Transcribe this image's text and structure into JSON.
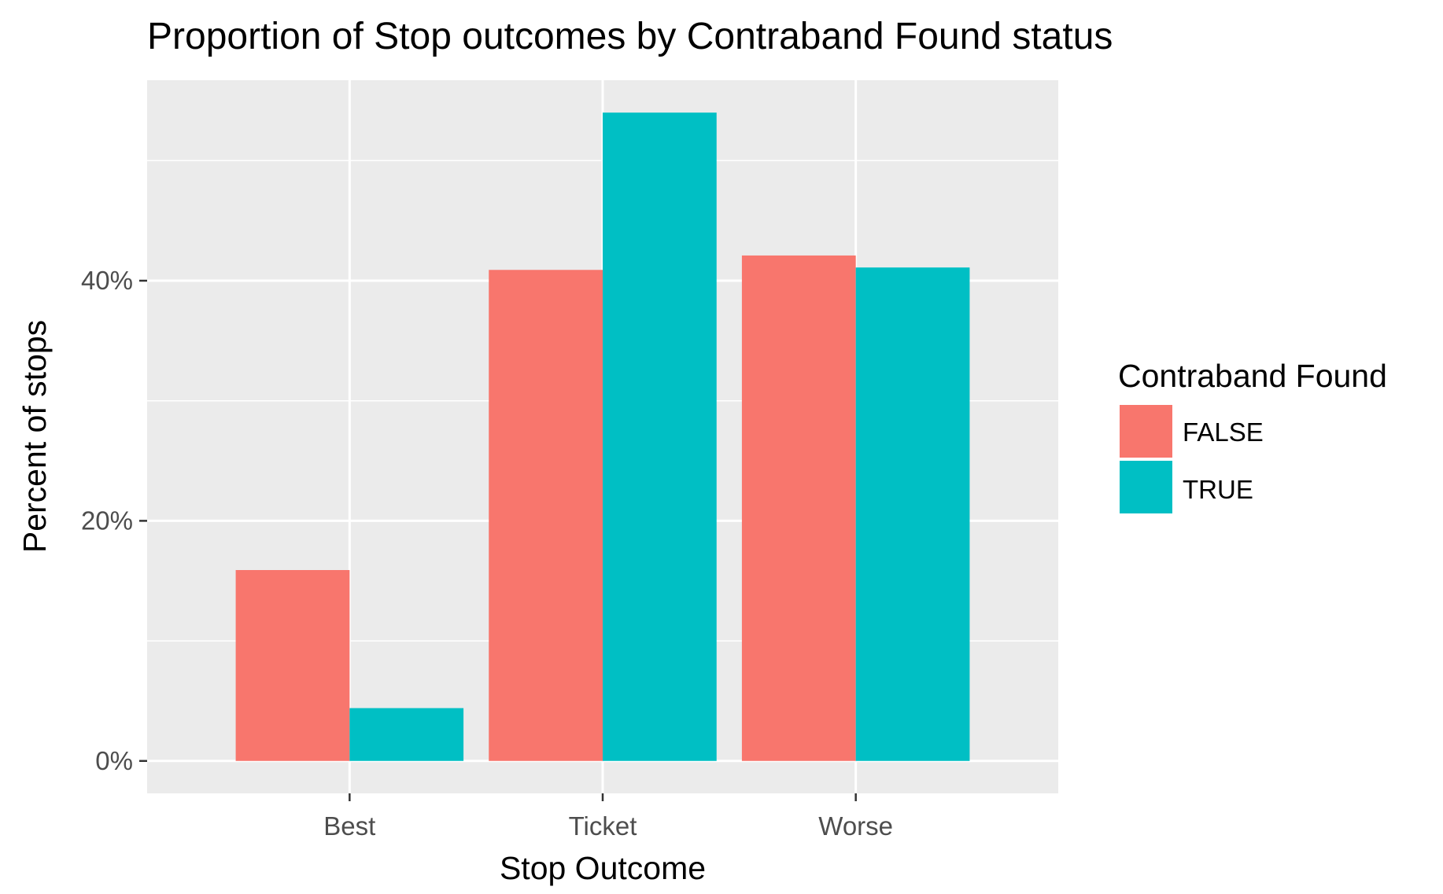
{
  "chart_data": {
    "type": "bar",
    "title": "Proportion of Stop outcomes by Contraband Found status",
    "xlabel": "Stop Outcome",
    "ylabel": "Percent of stops",
    "categories": [
      "Best",
      "Ticket",
      "Worse"
    ],
    "series": [
      {
        "name": "FALSE",
        "color": "#F8766D",
        "values": [
          15.9,
          40.9,
          42.1
        ]
      },
      {
        "name": "TRUE",
        "color": "#00BFC4",
        "values": [
          4.4,
          54.0,
          41.1
        ]
      }
    ],
    "yticks": [
      {
        "value": 0,
        "label": "0%"
      },
      {
        "value": 20,
        "label": "20%"
      },
      {
        "value": 40,
        "label": "40%"
      }
    ],
    "y_minor_ticks": [
      10,
      30,
      50
    ],
    "ylim": [
      -2.7,
      56.7
    ],
    "legend": {
      "title": "Contraband Found",
      "position": "right"
    },
    "panel_background": "#EBEBEB",
    "grid": true
  }
}
